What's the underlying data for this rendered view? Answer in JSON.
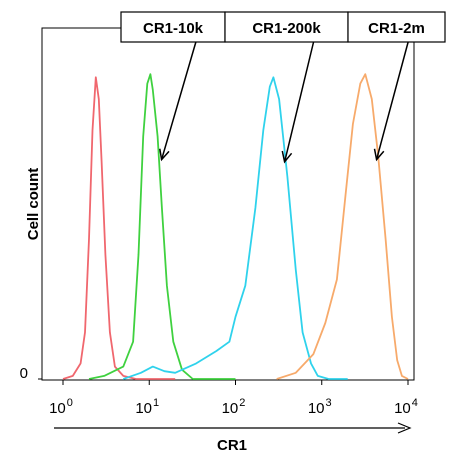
{
  "chart_data": {
    "type": "line",
    "title": "",
    "xlabel": "CR1",
    "ylabel": "Cell count",
    "x_scale": "log",
    "xlim": [
      1,
      10000
    ],
    "ylim": [
      0,
      1
    ],
    "x_ticks": [
      {
        "base": "10",
        "exp": "0",
        "value": 1
      },
      {
        "base": "10",
        "exp": "1",
        "value": 10
      },
      {
        "base": "10",
        "exp": "2",
        "value": 100
      },
      {
        "base": "10",
        "exp": "3",
        "value": 1000
      },
      {
        "base": "10",
        "exp": "4",
        "value": 10000
      }
    ],
    "y_ticks": [
      {
        "label": "0",
        "value": 0
      }
    ],
    "grid": false,
    "series": [
      {
        "color": "#f0676e",
        "points": [
          [
            1,
            0
          ],
          [
            1.3,
            0.01
          ],
          [
            1.6,
            0.05
          ],
          [
            1.8,
            0.15
          ],
          [
            2.0,
            0.45
          ],
          [
            2.2,
            0.8
          ],
          [
            2.4,
            0.97
          ],
          [
            2.6,
            0.9
          ],
          [
            2.8,
            0.7
          ],
          [
            3.1,
            0.4
          ],
          [
            3.5,
            0.15
          ],
          [
            4,
            0.04
          ],
          [
            5,
            0.01
          ],
          [
            7,
            0
          ],
          [
            20,
            0
          ]
        ]
      },
      {
        "name": "CR1-10k",
        "color": "#3fd13f",
        "points": [
          [
            2,
            0
          ],
          [
            3,
            0.01
          ],
          [
            5,
            0.04
          ],
          [
            6.5,
            0.12
          ],
          [
            7.5,
            0.4
          ],
          [
            8.5,
            0.78
          ],
          [
            9.5,
            0.95
          ],
          [
            10.3,
            0.98
          ],
          [
            11,
            0.93
          ],
          [
            12.5,
            0.78
          ],
          [
            14,
            0.55
          ],
          [
            16,
            0.3
          ],
          [
            19,
            0.12
          ],
          [
            24,
            0.03
          ],
          [
            32,
            0
          ],
          [
            100,
            0
          ]
        ]
      },
      {
        "name": "CR1-200k",
        "color": "#2fd2ec",
        "points": [
          [
            5,
            0
          ],
          [
            8,
            0.02
          ],
          [
            11,
            0.04
          ],
          [
            15,
            0.025
          ],
          [
            20,
            0.02
          ],
          [
            35,
            0.05
          ],
          [
            60,
            0.09
          ],
          [
            85,
            0.12
          ],
          [
            100,
            0.2
          ],
          [
            130,
            0.3
          ],
          [
            170,
            0.55
          ],
          [
            210,
            0.8
          ],
          [
            250,
            0.94
          ],
          [
            275,
            0.97
          ],
          [
            320,
            0.9
          ],
          [
            400,
            0.65
          ],
          [
            500,
            0.35
          ],
          [
            600,
            0.15
          ],
          [
            750,
            0.05
          ],
          [
            900,
            0.01
          ],
          [
            1200,
            0
          ],
          [
            2000,
            0
          ]
        ]
      },
      {
        "name": "CR1-2m",
        "color": "#f7aa6b",
        "points": [
          [
            300,
            0
          ],
          [
            500,
            0.02
          ],
          [
            800,
            0.08
          ],
          [
            1100,
            0.18
          ],
          [
            1500,
            0.32
          ],
          [
            1900,
            0.6
          ],
          [
            2300,
            0.82
          ],
          [
            2800,
            0.95
          ],
          [
            3200,
            0.98
          ],
          [
            3800,
            0.9
          ],
          [
            4500,
            0.72
          ],
          [
            5500,
            0.45
          ],
          [
            6500,
            0.2
          ],
          [
            7500,
            0.06
          ],
          [
            8500,
            0.01
          ],
          [
            10000,
            0
          ]
        ]
      }
    ],
    "legend": [
      {
        "label": "CR1-10k",
        "series_index": 1
      },
      {
        "label": "CR1-200k",
        "series_index": 2
      },
      {
        "label": "CR1-2m",
        "series_index": 3
      }
    ]
  }
}
